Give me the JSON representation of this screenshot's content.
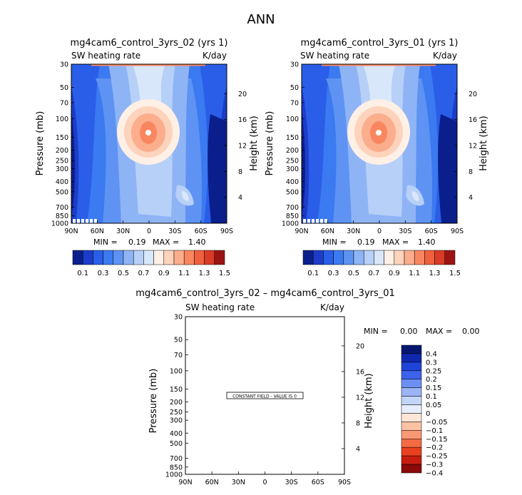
{
  "title": "ANN",
  "colors": {
    "main": [
      "#0b1f8c",
      "#1c3cc9",
      "#2a5ee8",
      "#3b7af0",
      "#5e93f3",
      "#8fb4f6",
      "#b7d0f8",
      "#d9e7fb",
      "#fff0e6",
      "#fdd3bc",
      "#fbad8c",
      "#f88760",
      "#f0603f",
      "#d93b26",
      "#9b1414"
    ],
    "diff": [
      "#07176f",
      "#1028b0",
      "#1e44d8",
      "#3a63ea",
      "#6b8ff2",
      "#9ab4f6",
      "#c3d6f9",
      "#e6eefb",
      "#fde6d8",
      "#fbc2a3",
      "#f99874",
      "#f46b44",
      "#e8411f",
      "#c71c10",
      "#8b0a0a"
    ]
  },
  "chart_data": [
    {
      "type": "contour",
      "name": "panel-left",
      "title": "mg4cam6_control_3yrs_02 (yrs 1)",
      "variable_label": "SW heating rate",
      "units_label": "K/day",
      "xlabel": "",
      "ylabel": "Pressure (mb)",
      "ylabel_right": "Height (km)",
      "x_ticks": [
        "90N",
        "60N",
        "30N",
        "0",
        "30S",
        "60S",
        "90S"
      ],
      "y_ticks": [
        "30",
        "50",
        "70",
        "100",
        "150",
        "200",
        "250",
        "300",
        "400",
        "500",
        "700",
        "850",
        "1000"
      ],
      "height_ticks": [
        "20",
        "16",
        "12",
        "8",
        "4"
      ],
      "stats": {
        "min_label": "MIN =",
        "min": "0.19",
        "max_label": "MAX =",
        "max": "1.40"
      },
      "levels": [
        "0.1",
        "0.3",
        "0.5",
        "0.7",
        "0.9",
        "1.1",
        "1.3",
        "1.5"
      ]
    },
    {
      "type": "contour",
      "name": "panel-right",
      "title": "mg4cam6_control_3yrs_01 (yrs 1)",
      "variable_label": "SW heating rate",
      "units_label": "K/day",
      "xlabel": "",
      "ylabel": "Pressure (mb)",
      "ylabel_right": "Height (km)",
      "x_ticks": [
        "90N",
        "60N",
        "30N",
        "0",
        "30S",
        "60S",
        "90S"
      ],
      "y_ticks": [
        "30",
        "50",
        "70",
        "100",
        "150",
        "200",
        "250",
        "300",
        "400",
        "500",
        "700",
        "850",
        "1000"
      ],
      "height_ticks": [
        "20",
        "16",
        "12",
        "8",
        "4"
      ],
      "stats": {
        "min_label": "MIN =",
        "min": "0.19",
        "max_label": "MAX =",
        "max": "1.40"
      },
      "levels": [
        "0.1",
        "0.3",
        "0.5",
        "0.7",
        "0.9",
        "1.1",
        "1.3",
        "1.5"
      ]
    },
    {
      "type": "contour",
      "name": "panel-diff",
      "title": "mg4cam6_control_3yrs_02 – mg4cam6_control_3yrs_01",
      "variable_label": "SW heating rate",
      "units_label": "K/day",
      "ylabel": "Pressure (mb)",
      "ylabel_right": "Height (km)",
      "x_ticks": [
        "90N",
        "60N",
        "30N",
        "0",
        "30S",
        "60S",
        "90S"
      ],
      "y_ticks": [
        "30",
        "50",
        "70",
        "100",
        "150",
        "200",
        "250",
        "300",
        "400",
        "500",
        "700",
        "850",
        "1000"
      ],
      "height_ticks": [
        "20",
        "16",
        "12",
        "8",
        "4"
      ],
      "stats": {
        "min_label": "MIN =",
        "min": "0.00",
        "max_label": "MAX =",
        "max": "0.00"
      },
      "constant_field_text": "CONSTANT FIELD - VALUE IS 0",
      "levels": [
        "0.4",
        "0.3",
        "0.25",
        "0.2",
        "0.15",
        "0.1",
        "0.05",
        "0",
        "−0.05",
        "−0.1",
        "−0.15",
        "−0.2",
        "−0.25",
        "−0.3",
        "−0.4"
      ]
    }
  ]
}
